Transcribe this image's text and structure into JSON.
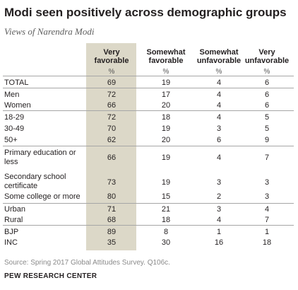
{
  "title": "Modi seen positively across demographic groups",
  "subtitle": "Views of Narendra Modi",
  "chart_data": {
    "type": "table",
    "columns": [
      {
        "label": "Very favorable",
        "unit": "%"
      },
      {
        "label": "Somewhat favorable",
        "unit": "%"
      },
      {
        "label": "Somewhat unfavorable",
        "unit": "%"
      },
      {
        "label": "Very unfavorable",
        "unit": "%"
      }
    ],
    "rows": [
      {
        "label": "TOTAL",
        "values": [
          "69",
          "19",
          "4",
          "6"
        ]
      },
      {
        "label": "Men",
        "values": [
          "72",
          "17",
          "4",
          "6"
        ]
      },
      {
        "label": "Women",
        "values": [
          "66",
          "20",
          "4",
          "6"
        ]
      },
      {
        "label": "18-29",
        "values": [
          "72",
          "18",
          "4",
          "5"
        ]
      },
      {
        "label": "30-49",
        "values": [
          "70",
          "19",
          "3",
          "5"
        ]
      },
      {
        "label": "50+",
        "values": [
          "62",
          "20",
          "6",
          "9"
        ]
      },
      {
        "label": "Primary education or less",
        "values": [
          "66",
          "19",
          "4",
          "7"
        ]
      },
      {
        "label": "Secondary school certificate",
        "values": [
          "73",
          "19",
          "3",
          "3"
        ]
      },
      {
        "label": "Some college or more",
        "values": [
          "80",
          "15",
          "2",
          "3"
        ]
      },
      {
        "label": "Urban",
        "values": [
          "71",
          "21",
          "3",
          "4"
        ]
      },
      {
        "label": "Rural",
        "values": [
          "68",
          "18",
          "4",
          "7"
        ]
      },
      {
        "label": "BJP",
        "values": [
          "89",
          "8",
          "1",
          "1"
        ]
      },
      {
        "label": "INC",
        "values": [
          "35",
          "30",
          "16",
          "18"
        ]
      }
    ],
    "highlight_color": "#dcd8c8"
  },
  "source": "Source: Spring 2017 Global Attitudes Survey. Q106c.",
  "org": "PEW RESEARCH CENTER"
}
